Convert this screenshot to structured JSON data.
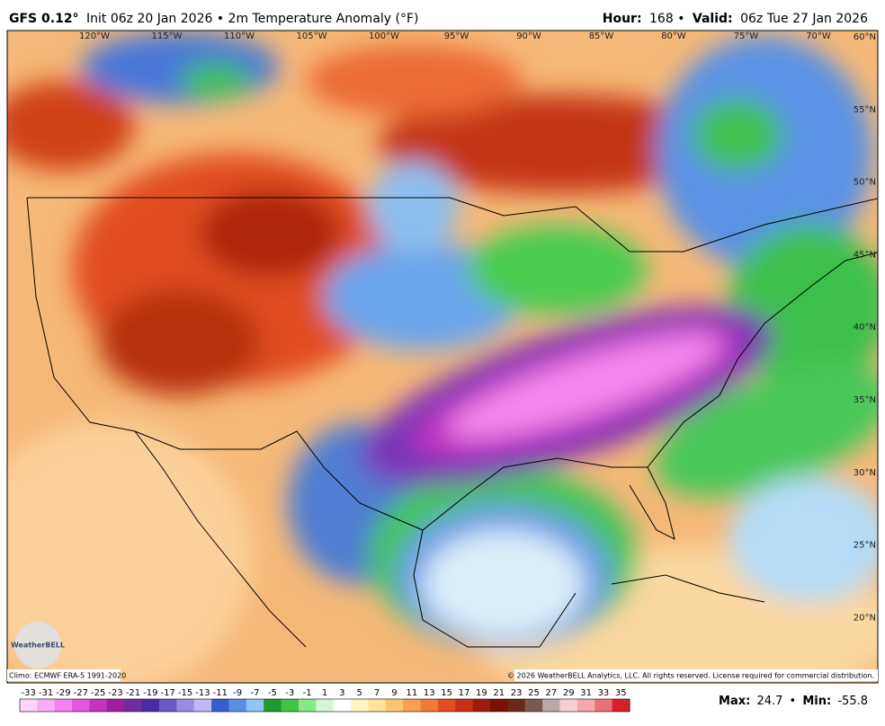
{
  "header": {
    "left": {
      "model": "GFS 0.12°",
      "info": "Init 06z 20 Jan 2026 • 2m Temperature Anomaly (°F)"
    },
    "right": {
      "hour_label": "Hour:",
      "hour": "168 •",
      "valid_label": "Valid:",
      "valid": "06z Tue 27 Jan 2026"
    }
  },
  "map": {
    "lon_labels": [
      "120°W",
      "115°W",
      "110°W",
      "105°W",
      "100°W",
      "95°W",
      "90°W",
      "85°W",
      "80°W",
      "75°W",
      "70°W"
    ],
    "lat_labels": [
      "60°N",
      "55°N",
      "50°N",
      "45°N",
      "40°N",
      "35°N",
      "30°N",
      "25°N",
      "20°N"
    ],
    "logo": "WeatherBELL",
    "climo": "Climo: ECMWF ERA-5 1991-2020",
    "copyright": "© 2026 WeatherBELL Analytics, LLC. All rights reserved. License required for commercial distribution."
  },
  "legend": {
    "ticks": [
      -33,
      -31,
      -29,
      -27,
      -25,
      -23,
      -21,
      -19,
      -17,
      -15,
      -13,
      -11,
      -9,
      -7,
      -5,
      -3,
      -1,
      1,
      3,
      5,
      7,
      9,
      11,
      13,
      15,
      17,
      19,
      21,
      23,
      25,
      27,
      29,
      31,
      33,
      35
    ],
    "colors": [
      "#fcd6f8",
      "#f8aef2",
      "#f282ec",
      "#e456dc",
      "#c832bc",
      "#a0209a",
      "#6e2c9e",
      "#4a2aa8",
      "#6a58c8",
      "#9a8ce0",
      "#c0b8f0",
      "#3a5cd0",
      "#5a8ee6",
      "#90c4f4",
      "#1f9a2c",
      "#3cc444",
      "#8ae68a",
      "#d4f6d4",
      "#ffffff",
      "#fff6c8",
      "#fde49a",
      "#fbc474",
      "#f8a050",
      "#f07a36",
      "#e04e22",
      "#c8301a",
      "#a01a10",
      "#7a1208",
      "#6a2a1a",
      "#7a5a50",
      "#b8a8a8",
      "#f4d0d4",
      "#f4a8b0",
      "#ec7078",
      "#d8202a"
    ]
  },
  "stats": {
    "max_label": "Max:",
    "max": 24.7,
    "sep": "•",
    "min_label": "Min:",
    "min": -55.8
  }
}
